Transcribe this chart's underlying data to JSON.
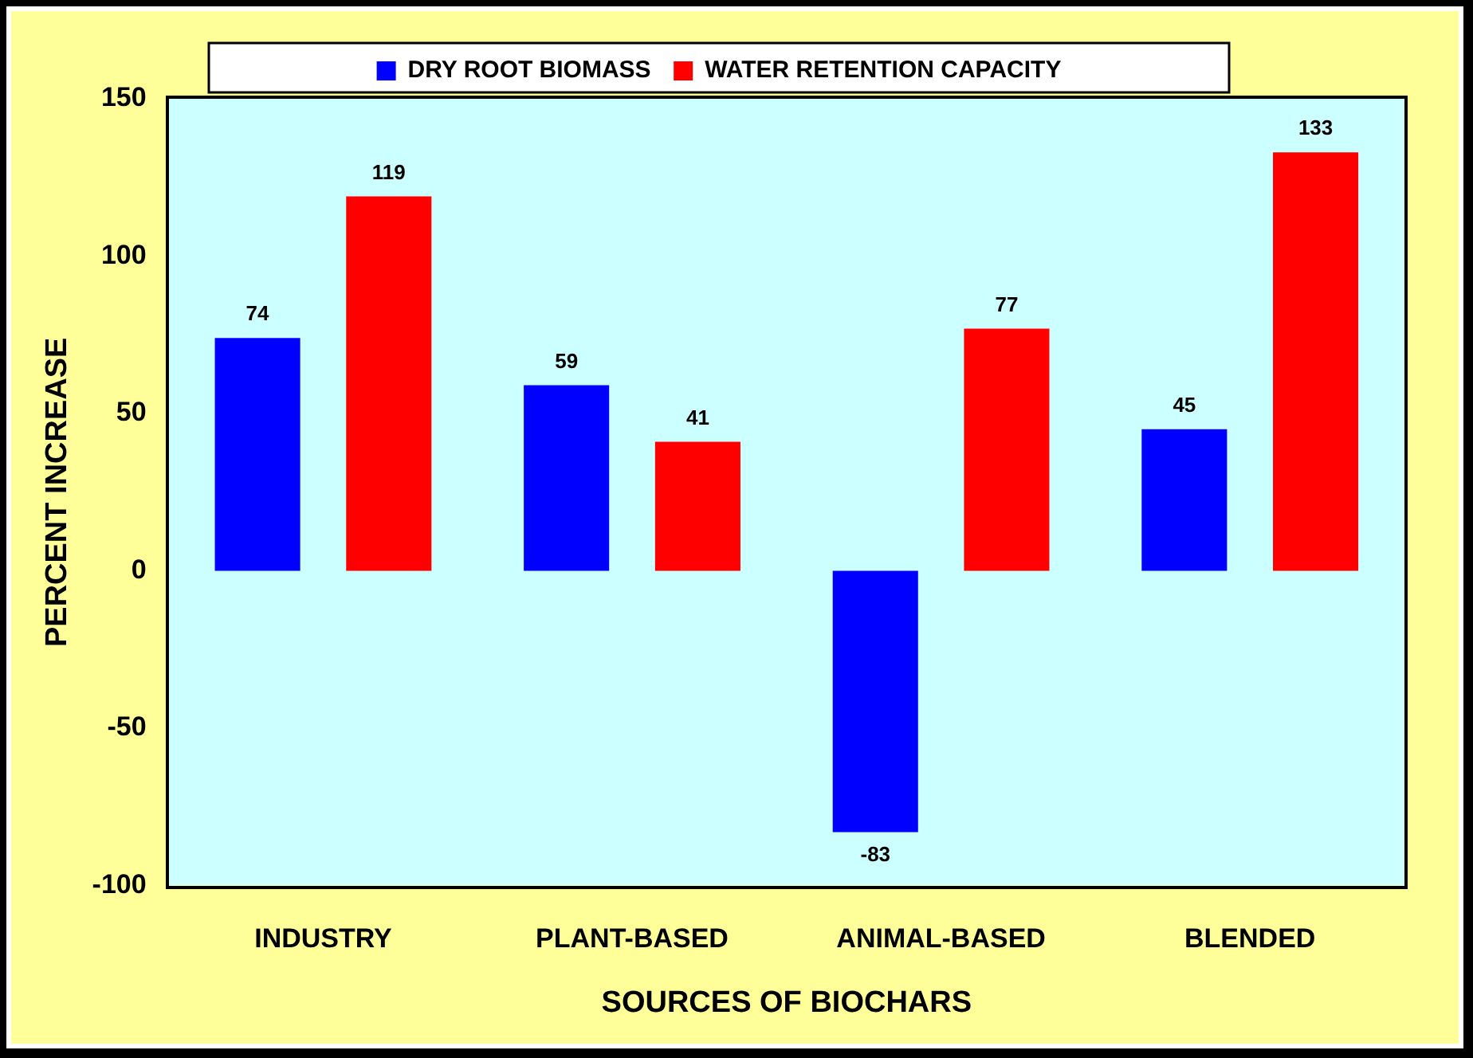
{
  "chart_data": {
    "type": "bar",
    "xlabel": "SOURCES OF BIOCHARS",
    "ylabel": "PERCENT INCREASE",
    "categories": [
      "INDUSTRY",
      "PLANT-BASED",
      "ANIMAL-BASED",
      "BLENDED"
    ],
    "series": [
      {
        "name": "DRY ROOT BIOMASS",
        "color": "#0000ff",
        "values": [
          74,
          59,
          -83,
          45
        ]
      },
      {
        "name": "WATER RETENTION CAPACITY",
        "color": "#ff0000",
        "values": [
          119,
          41,
          77,
          133
        ]
      }
    ],
    "ylim": [
      -100,
      150
    ],
    "yticks": [
      -100,
      -50,
      0,
      50,
      100,
      150
    ],
    "grid": false,
    "legend": "top",
    "data_labels": true
  }
}
